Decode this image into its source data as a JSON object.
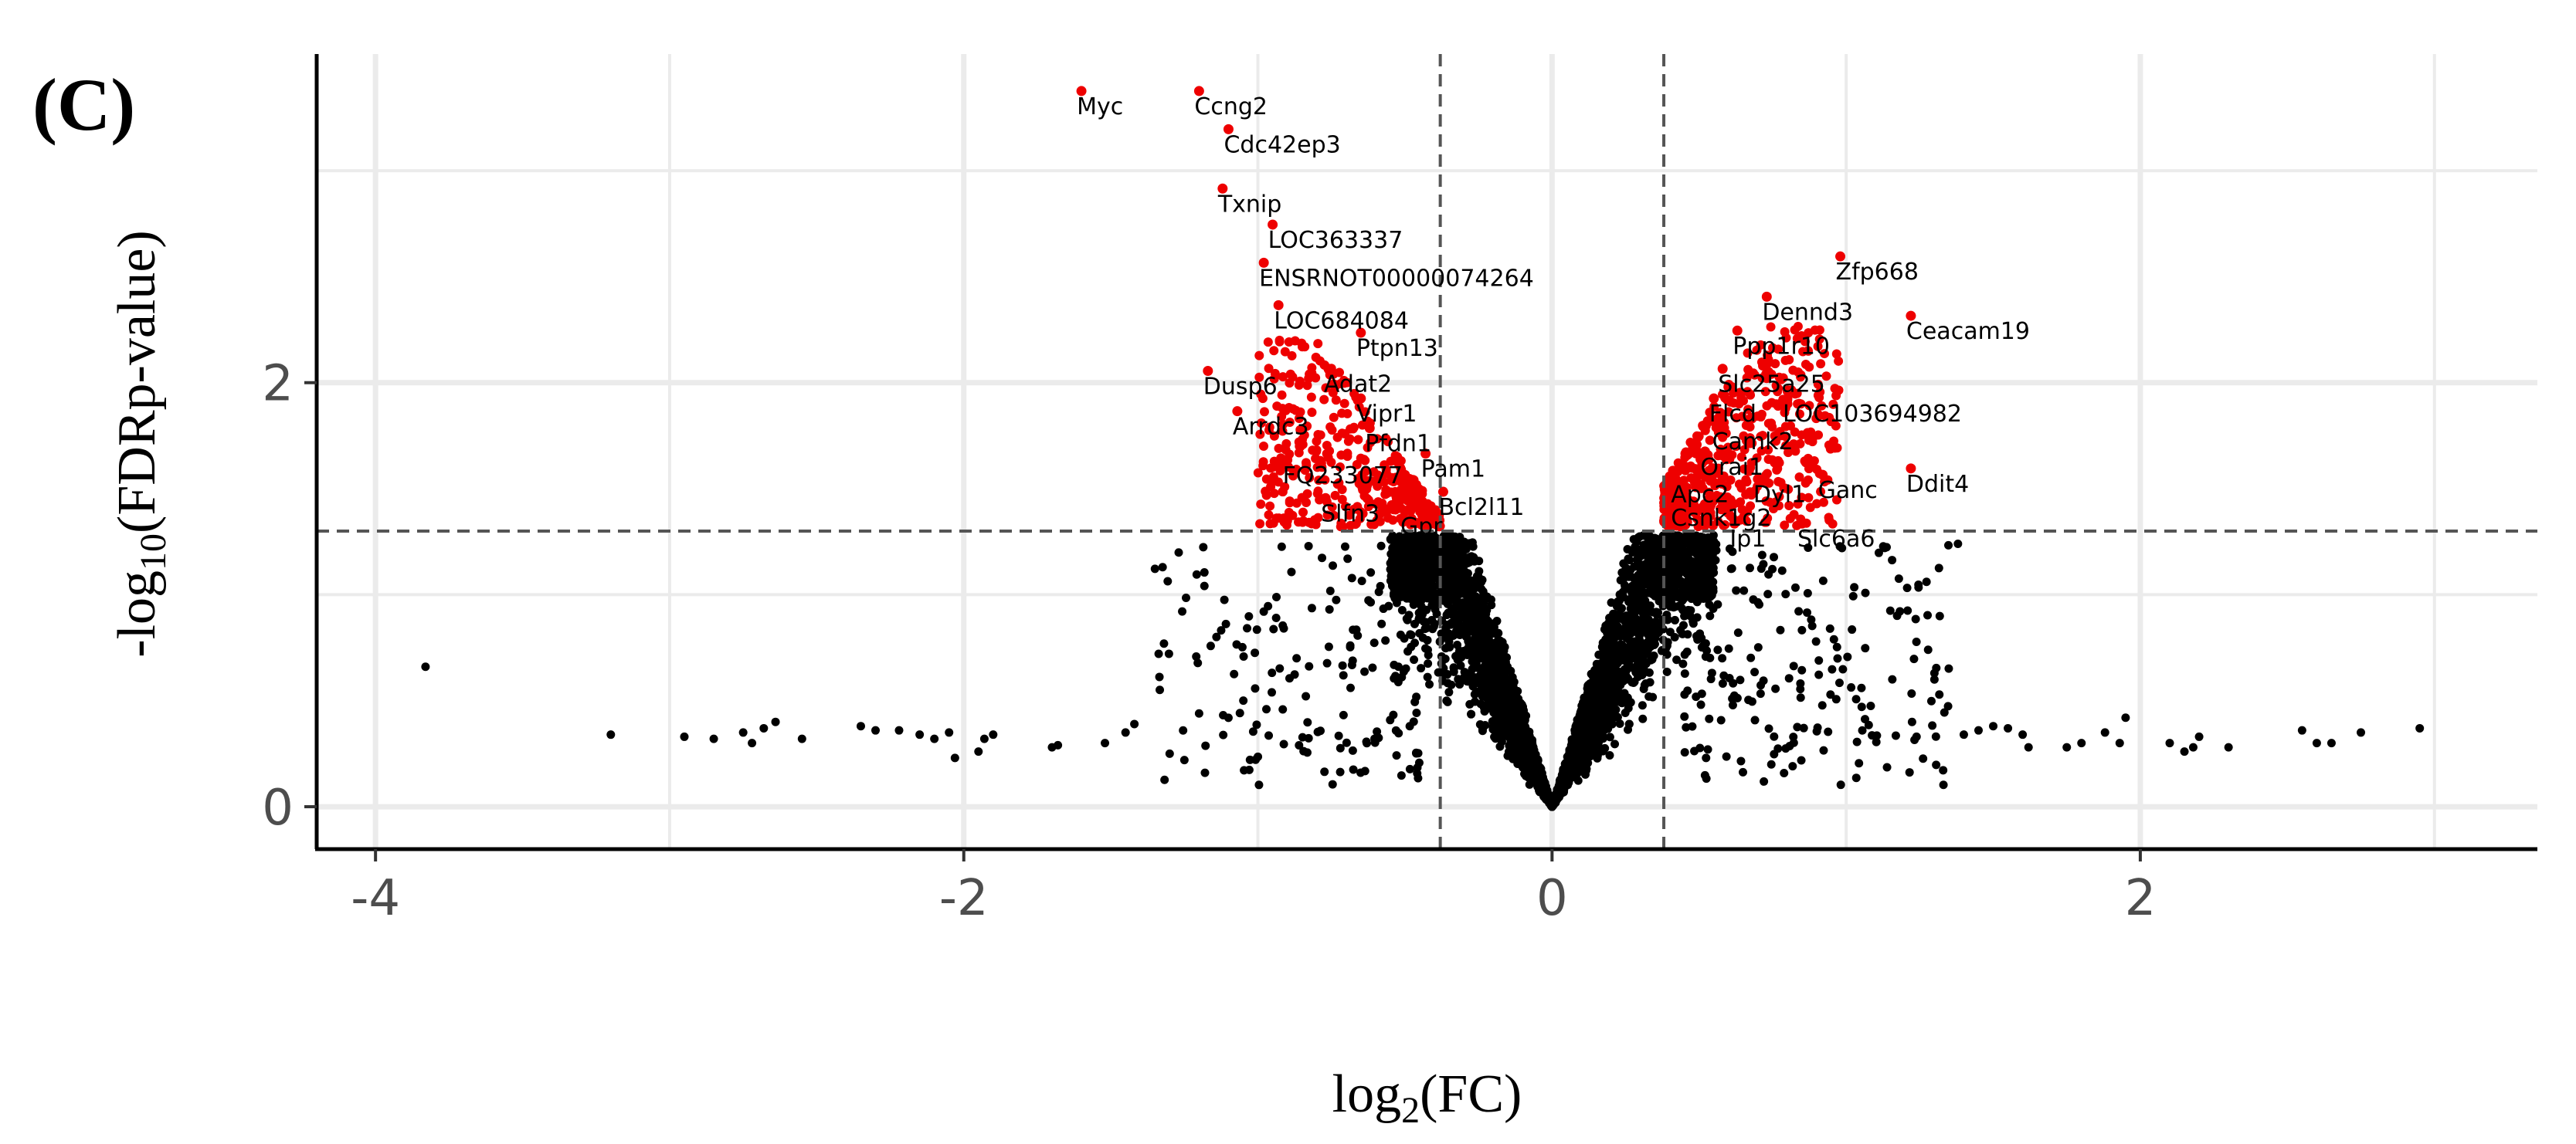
{
  "panel_label": "(C)",
  "chart_data": {
    "type": "scatter",
    "subtype": "volcano",
    "xlabel": "log2(FC)",
    "ylabel": "-log10(FDRp-value)",
    "xlim": [
      -4.2,
      3.35
    ],
    "ylim": [
      -0.2,
      3.55
    ],
    "x_ticks": [
      -4,
      -2,
      0,
      2
    ],
    "x_tick_labels": [
      "-4",
      "-2",
      "0",
      "2"
    ],
    "y_ticks": [
      0,
      2
    ],
    "y_tick_labels": [
      "0",
      "2"
    ],
    "x_minor_grid": [
      -3,
      -1,
      1,
      3
    ],
    "y_minor_grid": [
      1,
      3
    ],
    "grid": true,
    "thresholds": {
      "log2fc": [
        -0.38,
        0.38
      ],
      "neg_log10_fdr": 1.3
    },
    "colors": {
      "significant": "#ee0000",
      "not_significant": "#000000",
      "threshold_line": "#555555",
      "grid": "#ebebeb",
      "axis": "#000000"
    },
    "outliers": [
      [
        -3.83,
        0.66
      ],
      [
        -3.2,
        0.34
      ],
      [
        -2.95,
        0.33
      ],
      [
        -2.85,
        0.32
      ],
      [
        -2.75,
        0.35
      ],
      [
        -2.72,
        0.3
      ],
      [
        -2.68,
        0.37
      ],
      [
        -2.64,
        0.4
      ],
      [
        -2.55,
        0.32
      ],
      [
        -2.35,
        0.38
      ],
      [
        -2.3,
        0.36
      ],
      [
        -2.22,
        0.36
      ],
      [
        -2.15,
        0.34
      ],
      [
        -2.1,
        0.32
      ],
      [
        -2.05,
        0.35
      ],
      [
        -2.03,
        0.23
      ],
      [
        -1.95,
        0.26
      ],
      [
        -1.93,
        0.32
      ],
      [
        -1.9,
        0.34
      ],
      [
        -1.7,
        0.28
      ],
      [
        -1.68,
        0.29
      ],
      [
        -1.52,
        0.3
      ],
      [
        -1.45,
        0.35
      ],
      [
        -1.42,
        0.39
      ],
      [
        -1.3,
        0.25
      ],
      [
        -1.25,
        0.22
      ],
      [
        -1.2,
        0.44
      ],
      [
        -1.18,
        0.16
      ],
      [
        2.95,
        0.37
      ],
      [
        2.75,
        0.35
      ],
      [
        2.65,
        0.3
      ],
      [
        2.6,
        0.3
      ],
      [
        2.55,
        0.36
      ],
      [
        2.3,
        0.28
      ],
      [
        2.2,
        0.33
      ],
      [
        2.18,
        0.28
      ],
      [
        2.15,
        0.26
      ],
      [
        2.1,
        0.3
      ],
      [
        1.95,
        0.42
      ],
      [
        1.93,
        0.3
      ],
      [
        1.88,
        0.35
      ],
      [
        1.8,
        0.3
      ],
      [
        1.75,
        0.28
      ],
      [
        1.62,
        0.28
      ],
      [
        1.6,
        0.34
      ],
      [
        1.55,
        0.37
      ],
      [
        1.5,
        0.38
      ],
      [
        1.45,
        0.36
      ],
      [
        1.4,
        0.34
      ],
      [
        1.38,
        1.24
      ],
      [
        1.3,
        0.6
      ],
      [
        1.3,
        0.63
      ]
    ],
    "labeled_genes": [
      {
        "name": "Myc",
        "x": -1.6,
        "y": 3.31
      },
      {
        "name": "Ccng2",
        "x": -1.2,
        "y": 3.31
      },
      {
        "name": "Cdc42ep3",
        "x": -1.1,
        "y": 3.13
      },
      {
        "name": "Txnip",
        "x": -1.12,
        "y": 2.85
      },
      {
        "name": "LOC363337",
        "x": -0.95,
        "y": 2.68
      },
      {
        "name": "ENSRNOT00000074264",
        "x": -0.98,
        "y": 2.5
      },
      {
        "name": "LOC684084",
        "x": -0.93,
        "y": 2.3
      },
      {
        "name": "Ptpn13",
        "x": -0.65,
        "y": 2.17
      },
      {
        "name": "Dusp6",
        "x": -1.17,
        "y": 1.99
      },
      {
        "name": "Adat2",
        "x": -0.76,
        "y": 2.0
      },
      {
        "name": "Vipr1",
        "x": -0.65,
        "y": 1.86
      },
      {
        "name": "Arrdc3",
        "x": -1.07,
        "y": 1.8
      },
      {
        "name": "Pfdn1",
        "x": -0.62,
        "y": 1.72
      },
      {
        "name": "Pam1",
        "x": -0.43,
        "y": 1.6
      },
      {
        "name": "FQ233077",
        "x": -0.9,
        "y": 1.57
      },
      {
        "name": "Bcl2l11",
        "x": -0.37,
        "y": 1.42
      },
      {
        "name": "Slfn3",
        "x": -0.77,
        "y": 1.39
      },
      {
        "name": "Gpr",
        "x": -0.5,
        "y": 1.33
      },
      {
        "name": "Zfp668",
        "x": 0.98,
        "y": 2.53
      },
      {
        "name": "Dennd3",
        "x": 0.73,
        "y": 2.34
      },
      {
        "name": "Ceacam19",
        "x": 1.22,
        "y": 2.25
      },
      {
        "name": "Ppp1r10",
        "x": 0.63,
        "y": 2.18
      },
      {
        "name": "Slc25a25",
        "x": 0.58,
        "y": 2.0
      },
      {
        "name": "Flcd",
        "x": 0.55,
        "y": 1.86
      },
      {
        "name": "LOC103694982",
        "x": 0.8,
        "y": 1.86
      },
      {
        "name": "Camk2",
        "x": 0.56,
        "y": 1.73
      },
      {
        "name": "Ddit4",
        "x": 1.22,
        "y": 1.53
      },
      {
        "name": "Orai1",
        "x": 0.52,
        "y": 1.61
      },
      {
        "name": "Ganc",
        "x": 0.92,
        "y": 1.5
      },
      {
        "name": "Apc2",
        "x": 0.42,
        "y": 1.48
      },
      {
        "name": "Dyl1",
        "x": 0.7,
        "y": 1.48
      },
      {
        "name": "Csnk1g2",
        "x": 0.42,
        "y": 1.37
      },
      {
        "name": "Slc6a6",
        "x": 0.85,
        "y": 1.27
      },
      {
        "name": "Ip1",
        "x": 0.62,
        "y": 1.27
      }
    ]
  }
}
